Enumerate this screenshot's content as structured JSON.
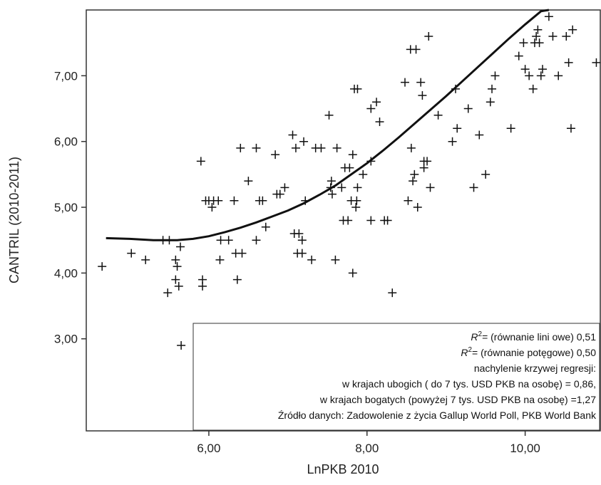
{
  "chart_data": {
    "type": "scatter",
    "xlabel": "LnPKB 2010",
    "ylabel": "CANTRIL (2010-2011)",
    "xlim": [
      4.45,
      10.95
    ],
    "ylim": [
      1.6,
      8.0
    ],
    "xticks": [
      6,
      8,
      10
    ],
    "xtick_labels": [
      "6,00",
      "8,00",
      "10,00"
    ],
    "yticks": [
      3,
      4,
      5,
      6,
      7
    ],
    "ytick_labels": [
      "3,00",
      "4,00",
      "5,00",
      "6,00",
      "7,00"
    ],
    "marker": "+",
    "grid": false,
    "points": [
      [
        4.65,
        4.1
      ],
      [
        5.02,
        4.3
      ],
      [
        5.2,
        4.2
      ],
      [
        5.42,
        4.5
      ],
      [
        5.48,
        3.7
      ],
      [
        5.5,
        4.5
      ],
      [
        5.58,
        4.2
      ],
      [
        5.58,
        3.9
      ],
      [
        5.6,
        4.1
      ],
      [
        5.62,
        3.8
      ],
      [
        5.64,
        4.4
      ],
      [
        5.65,
        2.9
      ],
      [
        5.9,
        5.7
      ],
      [
        5.92,
        3.9
      ],
      [
        5.92,
        3.8
      ],
      [
        5.96,
        5.1
      ],
      [
        6.0,
        5.1
      ],
      [
        6.04,
        5.0
      ],
      [
        6.06,
        5.1
      ],
      [
        6.12,
        5.1
      ],
      [
        6.14,
        4.2
      ],
      [
        6.15,
        4.5
      ],
      [
        6.25,
        4.5
      ],
      [
        6.32,
        5.1
      ],
      [
        6.34,
        4.3
      ],
      [
        6.36,
        3.9
      ],
      [
        6.4,
        5.9
      ],
      [
        6.42,
        4.3
      ],
      [
        6.5,
        5.4
      ],
      [
        6.6,
        5.9
      ],
      [
        6.6,
        4.5
      ],
      [
        6.64,
        5.1
      ],
      [
        6.68,
        5.1
      ],
      [
        6.72,
        4.7
      ],
      [
        6.84,
        5.8
      ],
      [
        6.86,
        5.2
      ],
      [
        6.9,
        5.2
      ],
      [
        6.96,
        5.3
      ],
      [
        7.06,
        6.1
      ],
      [
        7.08,
        4.6
      ],
      [
        7.1,
        5.9
      ],
      [
        7.12,
        4.3
      ],
      [
        7.14,
        4.6
      ],
      [
        7.18,
        4.3
      ],
      [
        7.18,
        4.5
      ],
      [
        7.2,
        6.0
      ],
      [
        7.22,
        5.1
      ],
      [
        7.3,
        4.2
      ],
      [
        7.35,
        5.9
      ],
      [
        7.42,
        5.9
      ],
      [
        7.52,
        6.4
      ],
      [
        7.54,
        5.3
      ],
      [
        7.55,
        5.4
      ],
      [
        7.56,
        5.2
      ],
      [
        7.6,
        4.2
      ],
      [
        7.62,
        5.9
      ],
      [
        7.68,
        5.3
      ],
      [
        7.7,
        4.8
      ],
      [
        7.72,
        5.6
      ],
      [
        7.76,
        4.8
      ],
      [
        7.78,
        5.6
      ],
      [
        7.8,
        5.1
      ],
      [
        7.82,
        4.0
      ],
      [
        7.82,
        5.8
      ],
      [
        7.84,
        6.8
      ],
      [
        7.86,
        5.0
      ],
      [
        7.87,
        5.1
      ],
      [
        7.88,
        6.8
      ],
      [
        7.88,
        5.3
      ],
      [
        7.95,
        5.5
      ],
      [
        8.05,
        6.5
      ],
      [
        8.05,
        5.7
      ],
      [
        8.05,
        4.8
      ],
      [
        8.12,
        6.6
      ],
      [
        8.16,
        6.3
      ],
      [
        8.22,
        4.8
      ],
      [
        8.26,
        4.8
      ],
      [
        8.32,
        3.7
      ],
      [
        8.48,
        6.9
      ],
      [
        8.52,
        5.1
      ],
      [
        8.55,
        7.4
      ],
      [
        8.56,
        5.9
      ],
      [
        8.58,
        5.4
      ],
      [
        8.6,
        5.5
      ],
      [
        8.62,
        7.4
      ],
      [
        8.64,
        5.0
      ],
      [
        8.68,
        6.9
      ],
      [
        8.7,
        6.7
      ],
      [
        8.72,
        5.6
      ],
      [
        8.72,
        5.7
      ],
      [
        8.76,
        5.7
      ],
      [
        8.78,
        7.6
      ],
      [
        8.8,
        5.3
      ],
      [
        8.9,
        6.4
      ],
      [
        9.08,
        6.0
      ],
      [
        9.12,
        6.8
      ],
      [
        9.14,
        6.2
      ],
      [
        9.28,
        6.5
      ],
      [
        9.35,
        5.3
      ],
      [
        9.42,
        6.1
      ],
      [
        9.5,
        5.5
      ],
      [
        9.56,
        6.6
      ],
      [
        9.58,
        6.8
      ],
      [
        9.62,
        7.0
      ],
      [
        9.82,
        6.2
      ],
      [
        9.92,
        7.3
      ],
      [
        9.98,
        7.5
      ],
      [
        10.0,
        7.1
      ],
      [
        10.05,
        7.0
      ],
      [
        10.1,
        6.8
      ],
      [
        10.12,
        7.5
      ],
      [
        10.14,
        7.6
      ],
      [
        10.16,
        7.7
      ],
      [
        10.18,
        7.5
      ],
      [
        10.2,
        7.0
      ],
      [
        10.22,
        7.1
      ],
      [
        10.3,
        7.9
      ],
      [
        10.35,
        7.6
      ],
      [
        10.42,
        7.0
      ],
      [
        10.52,
        7.6
      ],
      [
        10.55,
        7.2
      ],
      [
        10.58,
        6.2
      ],
      [
        10.6,
        7.7
      ],
      [
        10.9,
        7.2
      ]
    ],
    "fit_line": [
      [
        4.7,
        4.53
      ],
      [
        5.0,
        4.52
      ],
      [
        5.3,
        4.5
      ],
      [
        5.6,
        4.5
      ],
      [
        5.8,
        4.52
      ],
      [
        6.0,
        4.56
      ],
      [
        6.2,
        4.62
      ],
      [
        6.4,
        4.69
      ],
      [
        6.6,
        4.77
      ],
      [
        6.8,
        4.86
      ],
      [
        7.0,
        4.95
      ],
      [
        7.2,
        5.06
      ],
      [
        7.4,
        5.19
      ],
      [
        7.6,
        5.33
      ],
      [
        7.8,
        5.5
      ],
      [
        8.0,
        5.67
      ],
      [
        8.2,
        5.86
      ],
      [
        8.4,
        6.06
      ],
      [
        8.6,
        6.27
      ],
      [
        8.8,
        6.48
      ],
      [
        9.0,
        6.69
      ],
      [
        9.2,
        6.91
      ],
      [
        9.4,
        7.13
      ],
      [
        9.6,
        7.35
      ],
      [
        9.8,
        7.57
      ],
      [
        10.0,
        7.78
      ],
      [
        10.2,
        7.98
      ],
      [
        10.3,
        8.0
      ]
    ]
  },
  "annotation": {
    "line1_r": "R",
    "line1_sup": "2",
    "line1_text": "= (równanie lini owe) 0,51",
    "line2_r": "R",
    "line2_sup": "2",
    "line2_text": "= (równanie potęgowe) 0,50",
    "line3": "nachylenie krzywej regresji:",
    "line4": "w krajach ubogich ( do 7 tys. USD PKB na osobę) = 0,86,",
    "line5": "w krajach bogatych (powyżej 7 tys. USD PKB na osobę) =1,27",
    "line6": "Źródło danych: Zadowolenie z życia Gallup World Poll, PKB World Bank"
  }
}
